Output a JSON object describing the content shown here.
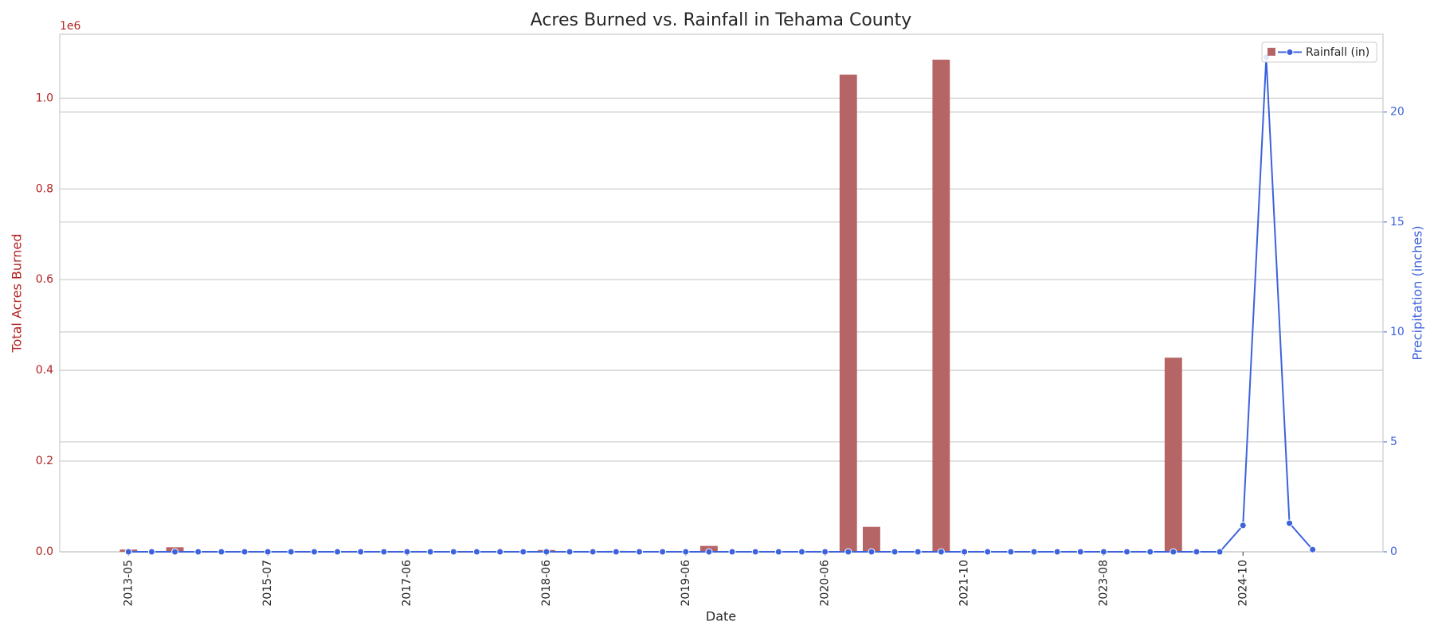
{
  "chart_data": {
    "type": "combo",
    "title": "Acres Burned vs. Rainfall in Tehama County",
    "xlabel": "Date",
    "ylabel": "Total Acres Burned",
    "y2label": "Precipitation (inches)",
    "y_offset_label": "1e6",
    "categories": [
      "2013-05",
      null,
      null,
      null,
      null,
      null,
      "2015-07",
      null,
      null,
      null,
      null,
      null,
      "2017-06",
      null,
      null,
      null,
      null,
      null,
      "2018-06",
      null,
      null,
      null,
      null,
      null,
      "2019-06",
      null,
      null,
      null,
      null,
      null,
      "2020-06",
      null,
      null,
      null,
      null,
      null,
      "2021-10",
      null,
      null,
      null,
      null,
      null,
      "2023-08",
      null,
      null,
      null,
      null,
      null,
      "2024-10",
      null,
      null,
      null
    ],
    "series": [
      {
        "type": "bar",
        "color": "#b56565",
        "values": [
          5000,
          0,
          10000,
          0,
          0,
          0,
          0,
          0,
          0,
          0,
          0,
          0,
          0,
          0,
          0,
          0,
          0,
          0,
          4000,
          0,
          0,
          2000,
          0,
          0,
          0,
          13000,
          0,
          0,
          0,
          0,
          0,
          1052000,
          55000,
          0,
          0,
          1085000,
          0,
          0,
          0,
          0,
          0,
          0,
          0,
          0,
          0,
          428000,
          0,
          0,
          0,
          0,
          0,
          0
        ]
      },
      {
        "type": "line",
        "name": "Rainfall (in)",
        "color": "#3c62dc",
        "axis": "y2",
        "values": [
          0,
          0,
          0,
          0,
          0,
          0,
          0,
          0,
          0,
          0,
          0,
          0,
          0,
          0,
          0,
          0,
          0,
          0,
          0,
          0,
          0,
          0,
          0,
          0,
          0,
          0,
          0,
          0,
          0,
          0,
          0,
          0,
          0,
          0,
          0,
          0,
          0,
          0,
          0,
          0,
          0,
          0,
          0,
          0,
          0,
          0,
          0,
          0,
          1.2,
          22.5,
          1.3,
          0.1
        ]
      }
    ],
    "ylim": [
      0,
      1141000
    ],
    "yticks": [
      {
        "value": 0,
        "label": "0.0"
      },
      {
        "value": 200000,
        "label": "0.2"
      },
      {
        "value": 400000,
        "label": "0.4"
      },
      {
        "value": 600000,
        "label": "0.6"
      },
      {
        "value": 800000,
        "label": "0.8"
      },
      {
        "value": 1000000,
        "label": "1.0"
      }
    ],
    "y2lim": [
      0,
      23.54
    ],
    "y2ticks": [
      0,
      5,
      10,
      15,
      20
    ],
    "ycolor": "#b22222",
    "y2color": "#3c62dc",
    "grid": true,
    "legend": "upper right"
  }
}
